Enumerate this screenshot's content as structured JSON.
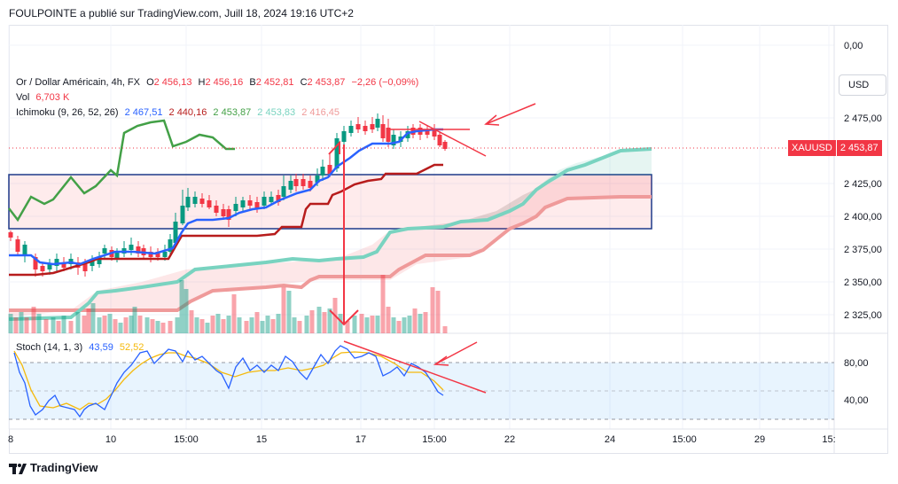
{
  "header": {
    "publish_line": "FOULPOINTE a publié sur TradingView.com, Juill 18, 2024 19:16 UTC+2"
  },
  "legend": {
    "symbol": "Or / Dollar Américain, 4h, FX",
    "o_label": "O",
    "o_value": "2 456,13",
    "h_label": "H",
    "h_value": "2 456,16",
    "b_label": "B",
    "b_value": "2 452,81",
    "c_label": "C",
    "c_value": "2 453,87",
    "change": "−2,26 (−0,09%)",
    "vol_label": "Vol",
    "vol_value": "6,703 K",
    "ichimoku_label": "Ichimoku (9, 26, 52, 26)",
    "ich_v1": "2 467,51",
    "ich_v2": "2 440,16",
    "ich_v3": "2 453,87",
    "ich_v4": "2 453,83",
    "ich_v5": "2 416,45",
    "stoch_label": "Stoch (14, 1, 3)",
    "stoch_k": "43,59",
    "stoch_d": "52,52"
  },
  "price_axis": {
    "labels": [
      "0,00",
      "2 475,00",
      "2 425,00",
      "2 400,00",
      "2 375,00",
      "2 350,00",
      "2 325,00"
    ],
    "currency_button": "USD",
    "current_symbol": "XAUUSD",
    "current_price": "2 453,87"
  },
  "stoch_axis": {
    "labels": [
      "80,00",
      "40,00"
    ]
  },
  "time_axis": {
    "labels": [
      "8",
      "10",
      "15:00",
      "15",
      "17",
      "15:00",
      "22",
      "24",
      "15:00",
      "29",
      "15:"
    ]
  },
  "footer": {
    "brand": "TradingView"
  },
  "colors": {
    "up": "#089981",
    "down": "#f23645",
    "tenkan": "#2962ff",
    "kijun": "#b71c1c",
    "chikou": "#43a047",
    "span_a": "#79d3c0",
    "span_b": "#ef9a9a",
    "stoch_k": "#2962ff",
    "stoch_d": "#f5b90b",
    "box": "#1e3a8a",
    "annot": "#f23645"
  }
}
